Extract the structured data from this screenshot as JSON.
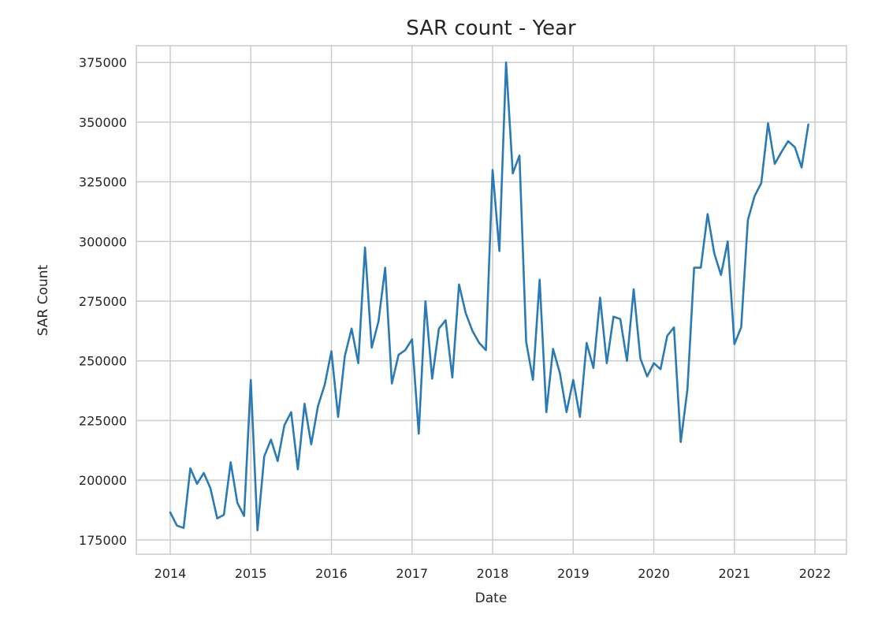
{
  "chart_data": {
    "type": "line",
    "title": "SAR count - Year",
    "xlabel": "Date",
    "ylabel": "SAR Count",
    "x_tick_labels": [
      "2014",
      "2015",
      "2016",
      "2017",
      "2018",
      "2019",
      "2020",
      "2021",
      "2022"
    ],
    "y_tick_labels": [
      "175000",
      "200000",
      "225000",
      "250000",
      "275000",
      "300000",
      "325000",
      "350000",
      "375000"
    ],
    "xlim": [
      2013.58,
      2022.39
    ],
    "ylim": [
      169000,
      382000
    ],
    "grid": true,
    "line_color": "#2a7ab5",
    "x_start": "2014-01",
    "x_step": "month",
    "series": [
      {
        "values": [
          186500,
          181000,
          180000,
          205000,
          198500,
          203000,
          196500,
          184000,
          185500,
          207500,
          190500,
          185000,
          242000,
          179000,
          210000,
          217000,
          208000,
          223000,
          228500,
          204500,
          232000,
          215000,
          231000,
          240000,
          254000,
          226500,
          252000,
          263500,
          249000,
          297500,
          255500,
          266500,
          289000,
          240500,
          252500,
          254500,
          259000,
          219500,
          275000,
          242500,
          263500,
          267000,
          243000,
          282000,
          270000,
          262500,
          257500,
          254500,
          330000,
          296000,
          375000,
          328500,
          336000,
          258000,
          242000,
          284000,
          228500,
          255000,
          245000,
          228500,
          242000,
          226500,
          257500,
          247000,
          276500,
          249000,
          268500,
          267500,
          250000,
          280000,
          251000,
          243500,
          249000,
          246500,
          260500,
          264000,
          216000,
          238000,
          289000,
          289000,
          311500,
          295000,
          286000,
          300000,
          257000,
          264000,
          309000,
          319000,
          324500,
          349500,
          332500,
          337500,
          342000,
          339500,
          331000,
          349000
        ]
      }
    ]
  }
}
